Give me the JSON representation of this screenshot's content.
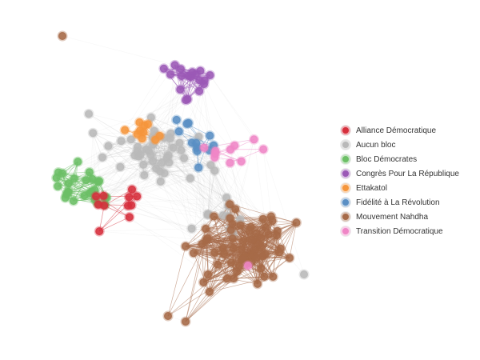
{
  "legend": [
    {
      "key": "AD",
      "label": "Alliance Démocratique",
      "color": "#d62f3c"
    },
    {
      "key": "AB",
      "label": "Aucun bloc",
      "color": "#b9b9b9"
    },
    {
      "key": "BD",
      "label": "Bloc Démocrates",
      "color": "#6cbf66"
    },
    {
      "key": "CPR",
      "label": "Congrès Pour La République",
      "color": "#9b59b6"
    },
    {
      "key": "ETT",
      "label": "Ettakatol",
      "color": "#f5963c"
    },
    {
      "key": "FR",
      "label": "Fidélité à La Révolution",
      "color": "#5a8fc4"
    },
    {
      "key": "MN",
      "label": "Mouvement Nahdha",
      "color": "#a66a48"
    },
    {
      "key": "TD",
      "label": "Transition Démocratique",
      "color": "#ef86c6"
    }
  ]
}
